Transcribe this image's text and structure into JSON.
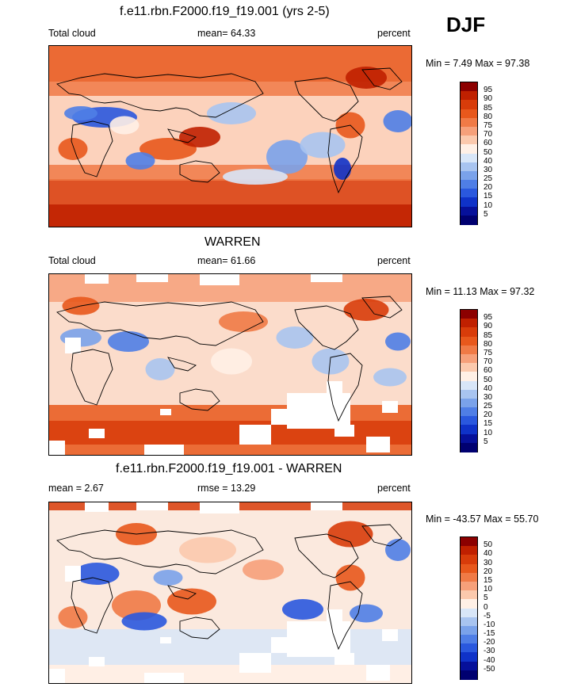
{
  "header": {
    "season": "DJF"
  },
  "chart_data": [
    {
      "type": "heatmap",
      "title": "f.e11.rbn.F2000.f19_f19.001 (yrs 2-5)",
      "left_label": "Total cloud",
      "center_label": "mean=  64.33",
      "right_label": "percent",
      "mean": 64.33,
      "stats_text": "Min =   7.49 Max =  97.38",
      "min": 7.49,
      "max": 97.38,
      "colorbar": {
        "levels": [
          "95",
          "90",
          "85",
          "80",
          "75",
          "70",
          "60",
          "50",
          "40",
          "30",
          "25",
          "20",
          "15",
          "10",
          "5"
        ],
        "colors": [
          "#8c0000",
          "#c02000",
          "#d83c0a",
          "#e8581c",
          "#f07a46",
          "#f6a07a",
          "#fbc9ad",
          "#fff0e6",
          "#d8e6f8",
          "#a8c4f0",
          "#7aa2ea",
          "#4f7ee6",
          "#2a58de",
          "#0f32c8",
          "#06109a",
          "#000070"
        ]
      },
      "style": "full"
    },
    {
      "type": "heatmap",
      "title": "WARREN",
      "left_label": "Total cloud",
      "center_label": "mean=  61.66",
      "right_label": "percent",
      "mean": 61.66,
      "stats_text": "Min =  11.13 Max =  97.32",
      "min": 11.13,
      "max": 97.32,
      "colorbar": {
        "levels": [
          "95",
          "90",
          "85",
          "80",
          "75",
          "70",
          "60",
          "50",
          "40",
          "30",
          "25",
          "20",
          "15",
          "10",
          "5"
        ],
        "colors": [
          "#8c0000",
          "#c02000",
          "#d83c0a",
          "#e8581c",
          "#f07a46",
          "#f6a07a",
          "#fbc9ad",
          "#fff0e6",
          "#d8e6f8",
          "#a8c4f0",
          "#7aa2ea",
          "#4f7ee6",
          "#2a58de",
          "#0f32c8",
          "#06109a",
          "#000070"
        ]
      },
      "style": "obs"
    },
    {
      "type": "heatmap",
      "title": "f.e11.rbn.F2000.f19_f19.001 - WARREN",
      "left_label": "mean =   2.67",
      "center_label": "rmse =  13.29",
      "right_label": "percent",
      "mean": 2.67,
      "rmse": 13.29,
      "stats_text": "Min = -43.57 Max =  55.70",
      "min": -43.57,
      "max": 55.7,
      "colorbar": {
        "levels": [
          "50",
          "40",
          "30",
          "20",
          "15",
          "10",
          "5",
          "0",
          "-5",
          "-10",
          "-15",
          "-20",
          "-30",
          "-40",
          "-50"
        ],
        "colors": [
          "#8c0000",
          "#c02000",
          "#d83c0a",
          "#e8581c",
          "#f07a46",
          "#f6a07a",
          "#fbc9ad",
          "#fff0e6",
          "#d8e6f8",
          "#a8c4f0",
          "#7aa2ea",
          "#4f7ee6",
          "#2a58de",
          "#0f32c8",
          "#06109a",
          "#000070"
        ]
      },
      "style": "diff"
    }
  ]
}
